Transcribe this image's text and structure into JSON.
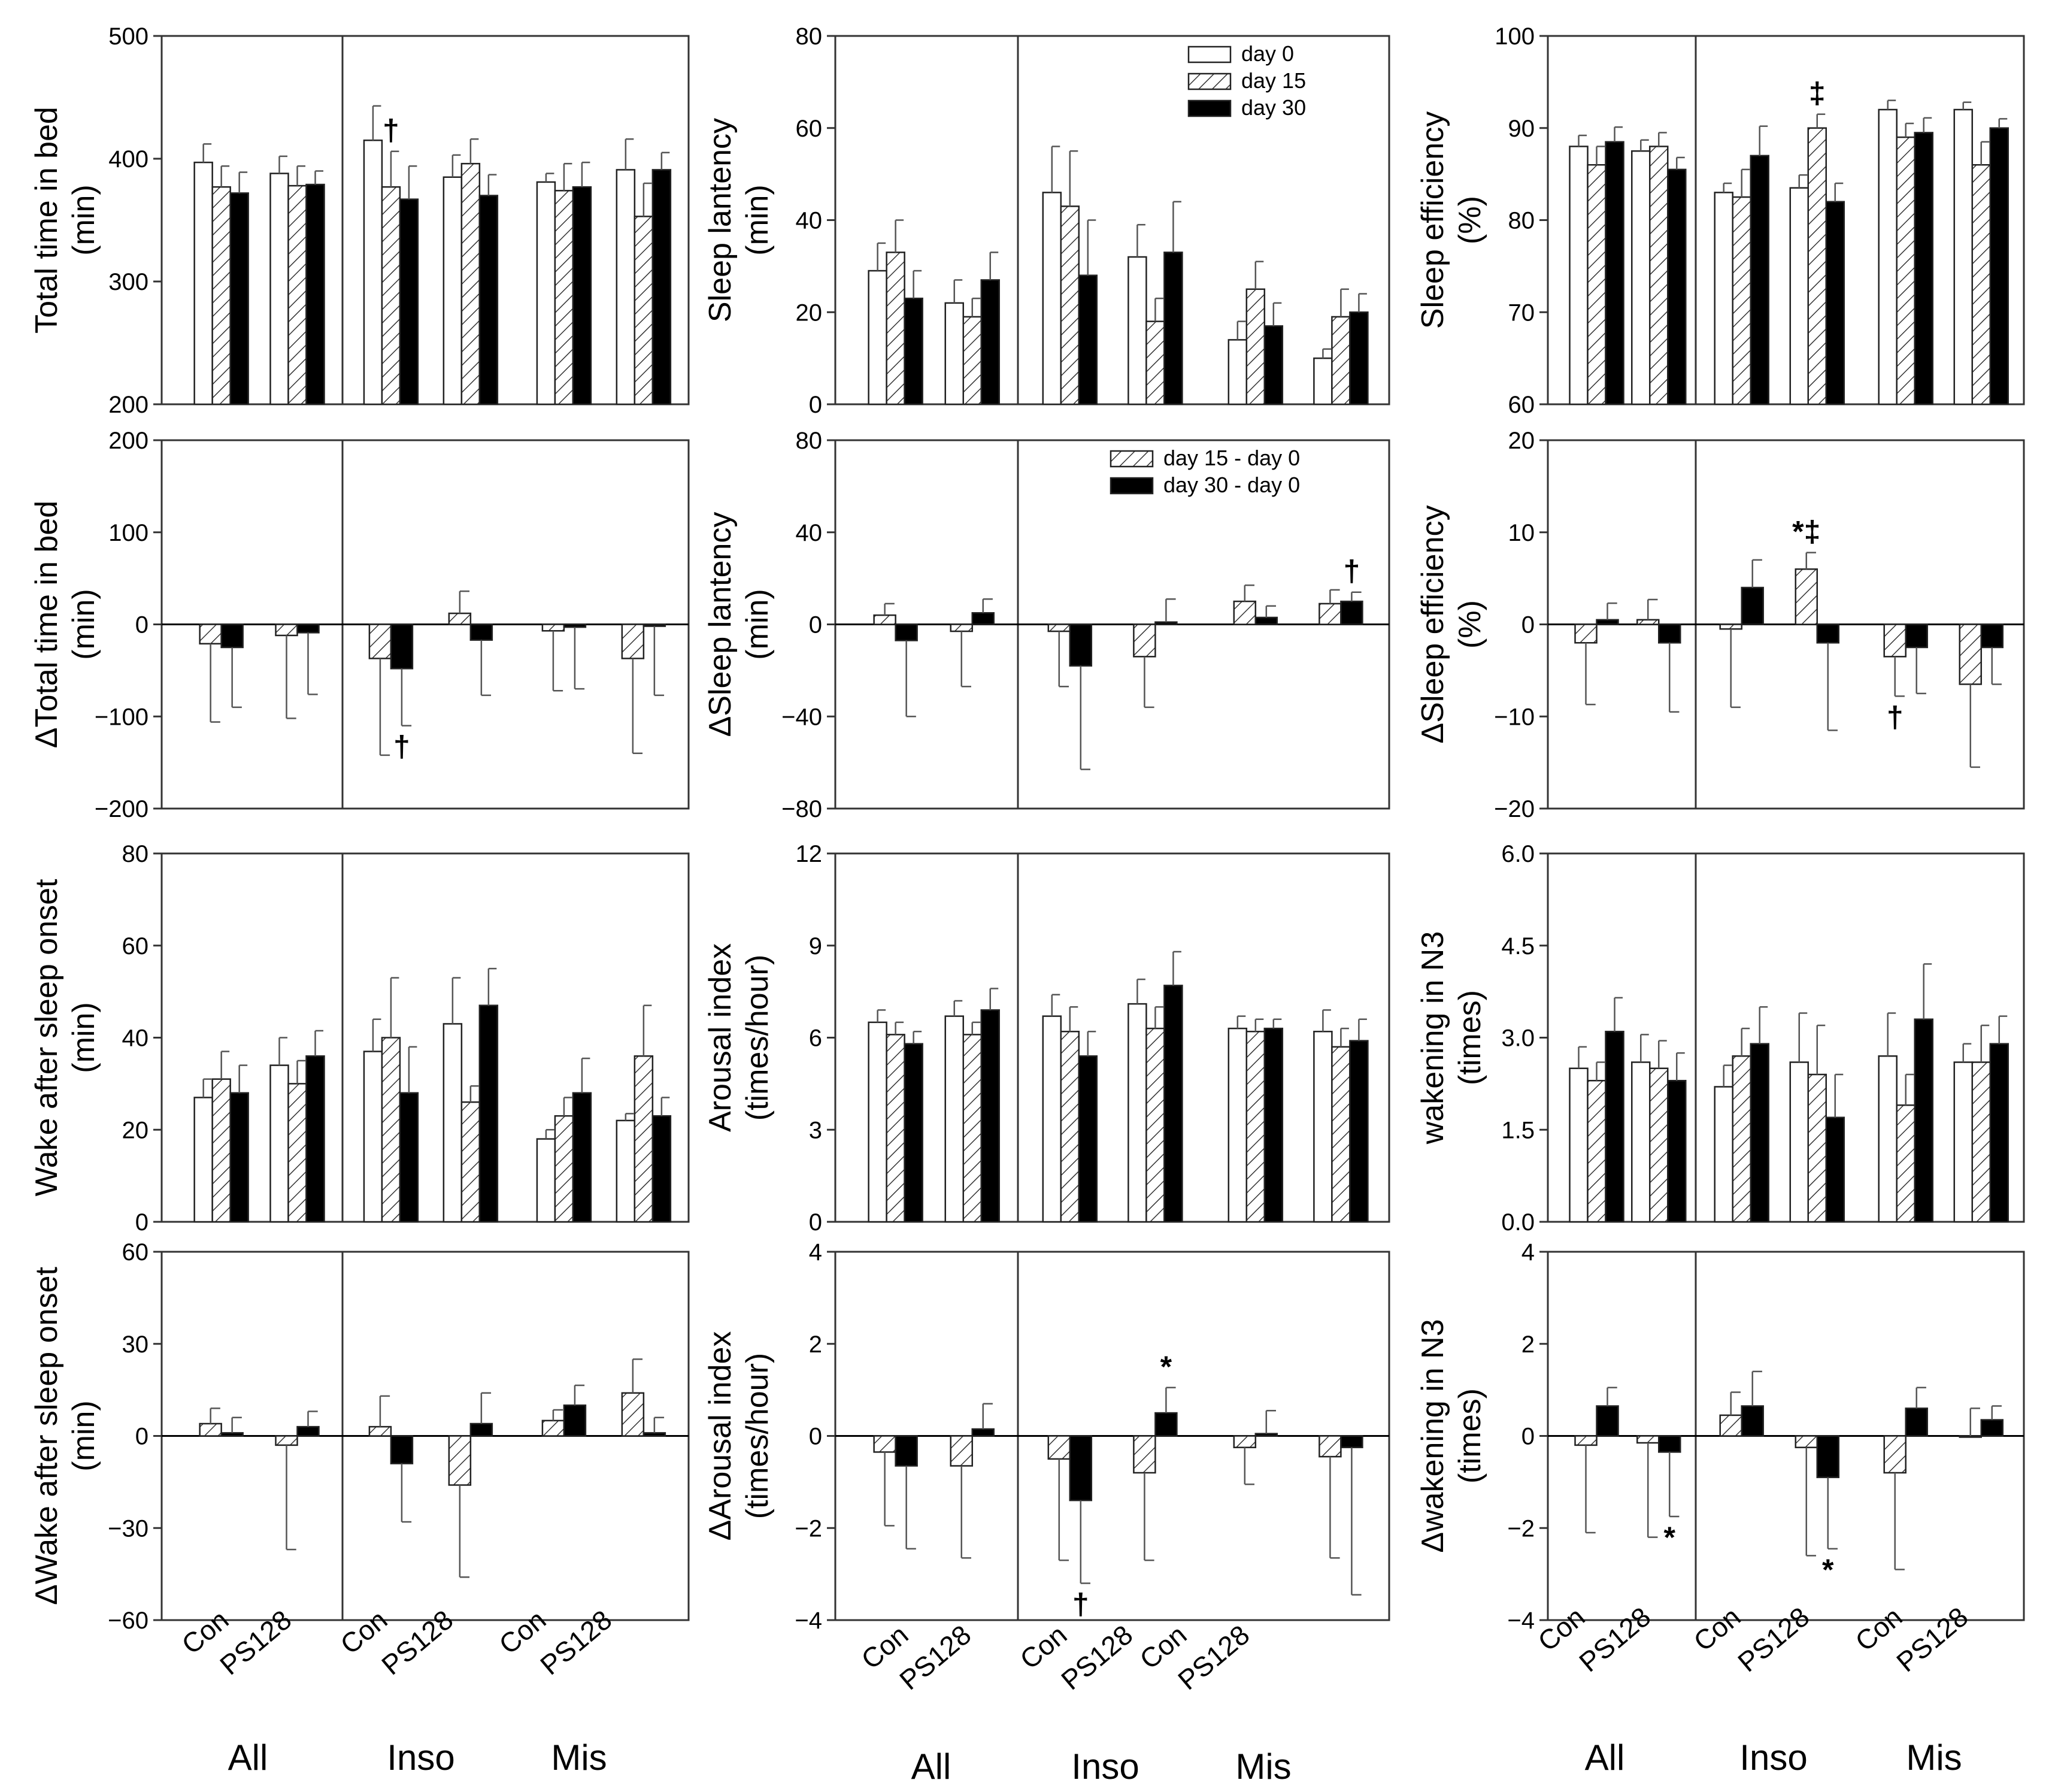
{
  "colors": {
    "day0": "#ffffff",
    "day15": "#ffffff",
    "day30": "#000000",
    "ink": "#000000",
    "error_bar": "#555555"
  },
  "legends": {
    "absolute": [
      "day 0",
      "day 15",
      "day 30"
    ],
    "delta": [
      "day 15 - day 0",
      "day 30 - day 0"
    ]
  },
  "x_axis": {
    "subgroup_labels": [
      "Con",
      "PS128"
    ],
    "group_labels": [
      "All",
      "Inso",
      "Mis"
    ]
  },
  "chart_data": [
    {
      "type": "bar",
      "id": "tib",
      "title": "",
      "ylabel": [
        "Total time in bed",
        "(min)"
      ],
      "ylim": [
        200,
        500
      ],
      "ticks": [
        200,
        300,
        400,
        500
      ],
      "tick_labels": [
        "200",
        "300",
        "400",
        "500"
      ],
      "baseline": 200,
      "legend": "none",
      "series": [
        {
          "name": "day 0",
          "values": [
            397,
            388,
            415,
            385,
            381,
            391
          ],
          "errors": [
            15,
            14,
            28,
            18,
            7,
            25
          ]
        },
        {
          "name": "day 15",
          "values": [
            377,
            378,
            377,
            396,
            374,
            353
          ],
          "errors": [
            17,
            16,
            29,
            20,
            22,
            27
          ]
        },
        {
          "name": "day 30",
          "values": [
            372,
            379,
            367,
            370,
            377,
            391
          ],
          "errors": [
            17,
            11,
            27,
            17,
            20,
            14
          ]
        }
      ],
      "annotations": [
        {
          "text": "†",
          "group": 2,
          "series": 1,
          "pos": "above"
        }
      ]
    },
    {
      "type": "bar",
      "id": "sl",
      "title": "",
      "ylabel": [
        "Sleep lantency",
        "(min)"
      ],
      "ylim": [
        0,
        80
      ],
      "ticks": [
        0,
        20,
        40,
        60,
        80
      ],
      "tick_labels": [
        "0",
        "20",
        "40",
        "60",
        "80"
      ],
      "baseline": 0,
      "legend": "top-right",
      "series": [
        {
          "name": "day 0",
          "values": [
            29,
            22,
            46,
            32,
            14,
            10
          ],
          "errors": [
            6,
            5,
            10,
            7,
            4,
            2
          ]
        },
        {
          "name": "day 15",
          "values": [
            33,
            19,
            43,
            18,
            25,
            19
          ],
          "errors": [
            7,
            4,
            12,
            5,
            6,
            6
          ]
        },
        {
          "name": "day 30",
          "values": [
            23,
            27,
            28,
            33,
            17,
            20
          ],
          "errors": [
            6,
            6,
            12,
            11,
            5,
            4
          ]
        }
      ],
      "annotations": []
    },
    {
      "type": "bar",
      "id": "se",
      "title": "",
      "ylabel": [
        "Sleep efficiency",
        "(%)"
      ],
      "ylim": [
        60,
        100
      ],
      "ticks": [
        60,
        70,
        80,
        90,
        100
      ],
      "tick_labels": [
        "60",
        "70",
        "80",
        "90",
        "100"
      ],
      "baseline": 60,
      "legend": "none",
      "series": [
        {
          "name": "day 0",
          "values": [
            88,
            87.5,
            83,
            83.5,
            92,
            92
          ],
          "errors": [
            1.2,
            1.2,
            1,
            1.4,
            1,
            0.8
          ]
        },
        {
          "name": "day 15",
          "values": [
            86,
            88,
            82.5,
            90,
            89,
            86
          ],
          "errors": [
            2,
            1.5,
            3,
            1.5,
            1.5,
            2.5
          ]
        },
        {
          "name": "day 30",
          "values": [
            88.5,
            85.5,
            87,
            82,
            89.5,
            90
          ],
          "errors": [
            1.6,
            1.3,
            3.2,
            2,
            1.6,
            1
          ]
        }
      ],
      "annotations": [
        {
          "text": "‡",
          "group": 3,
          "series": 1,
          "pos": "above"
        }
      ]
    },
    {
      "type": "bar",
      "id": "dtib",
      "title": "",
      "ylabel": [
        "ΔTotal time in bed",
        "(min)"
      ],
      "ylim": [
        -200,
        200
      ],
      "ticks": [
        -200,
        -100,
        0,
        100,
        200
      ],
      "tick_labels": [
        "−200",
        "−100",
        "0",
        "100",
        "200"
      ],
      "baseline": 0,
      "legend": "none",
      "series": [
        {
          "name": "day 15 - day 0",
          "values": [
            -21,
            -12,
            -37,
            12,
            -7,
            -37
          ],
          "errors": [
            85,
            90,
            105,
            24,
            65,
            103
          ]
        },
        {
          "name": "day 30 - day 0",
          "values": [
            -25,
            -9,
            -48,
            -17,
            -3,
            -2
          ],
          "errors": [
            65,
            67,
            62,
            60,
            67,
            75
          ]
        }
      ],
      "annotations": [
        {
          "text": "†",
          "group": 2,
          "series": 1,
          "pos": "below"
        }
      ]
    },
    {
      "type": "bar",
      "id": "dsl",
      "title": "",
      "ylabel": [
        "ΔSleep lantency",
        "(min)"
      ],
      "ylim": [
        -80,
        80
      ],
      "ticks": [
        -80,
        -40,
        0,
        40,
        80
      ],
      "tick_labels": [
        "−80",
        "−40",
        "0",
        "40",
        "80"
      ],
      "baseline": 0,
      "legend": "top-right",
      "series": [
        {
          "name": "day 15 - day 0",
          "values": [
            4,
            -3,
            -3,
            -14,
            10,
            9
          ],
          "errors": [
            5,
            24,
            24,
            22,
            7,
            6
          ]
        },
        {
          "name": "day 30 - day 0",
          "values": [
            -7,
            5,
            -18,
            1,
            3,
            10
          ],
          "errors": [
            33,
            6,
            45,
            10,
            5,
            4
          ]
        }
      ],
      "annotations": [
        {
          "text": "†",
          "group": 5,
          "series": 1,
          "pos": "above"
        }
      ]
    },
    {
      "type": "bar",
      "id": "dse",
      "title": "",
      "ylabel": [
        "ΔSleep efficiency",
        "(%)"
      ],
      "ylim": [
        -20,
        20
      ],
      "ticks": [
        -20,
        -10,
        0,
        10,
        20
      ],
      "tick_labels": [
        "−20",
        "−10",
        "0",
        "10",
        "20"
      ],
      "baseline": 0,
      "legend": "none",
      "series": [
        {
          "name": "day 15 - day 0",
          "values": [
            -2,
            0.5,
            -0.5,
            6,
            -3.5,
            -6.5
          ],
          "errors": [
            6.7,
            2.2,
            8.5,
            1.8,
            4.3,
            9
          ]
        },
        {
          "name": "day 30 - day 0",
          "values": [
            0.5,
            -2,
            4,
            -2,
            -2.5,
            -2.5
          ],
          "errors": [
            1.8,
            7.5,
            3,
            9.5,
            5,
            4
          ]
        }
      ],
      "annotations": [
        {
          "text": "*‡",
          "group": 3,
          "series": 0,
          "pos": "above"
        },
        {
          "text": "†",
          "group": 4,
          "series": 0,
          "pos": "below"
        }
      ]
    },
    {
      "type": "bar",
      "id": "waso",
      "title": "",
      "ylabel": [
        "Wake after sleep onset",
        "(min)"
      ],
      "ylim": [
        0,
        80
      ],
      "ticks": [
        0,
        20,
        40,
        60,
        80
      ],
      "tick_labels": [
        "0",
        "20",
        "40",
        "60",
        "80"
      ],
      "baseline": 0,
      "legend": "none",
      "series": [
        {
          "name": "day 0",
          "values": [
            27,
            34,
            37,
            43,
            18,
            22
          ],
          "errors": [
            4,
            6,
            7,
            10,
            2,
            1.5
          ]
        },
        {
          "name": "day 15",
          "values": [
            31,
            30,
            40,
            26,
            23,
            36
          ],
          "errors": [
            6,
            5,
            13,
            3.5,
            4,
            11
          ]
        },
        {
          "name": "day 30",
          "values": [
            28,
            36,
            28,
            47,
            28,
            23
          ],
          "errors": [
            6,
            5.5,
            10,
            8,
            7.5,
            4
          ]
        }
      ],
      "annotations": []
    },
    {
      "type": "bar",
      "id": "ai",
      "title": "",
      "ylabel": [
        "Arousal index",
        "(times/hour)"
      ],
      "ylim": [
        0,
        12
      ],
      "ticks": [
        0,
        3,
        6,
        9,
        12
      ],
      "tick_labels": [
        "0",
        "3",
        "6",
        "9",
        "12"
      ],
      "baseline": 0,
      "legend": "none",
      "series": [
        {
          "name": "day 0",
          "values": [
            6.5,
            6.7,
            6.7,
            7.1,
            6.3,
            6.2
          ],
          "errors": [
            0.4,
            0.5,
            0.7,
            0.8,
            0.4,
            0.7
          ]
        },
        {
          "name": "day 15",
          "values": [
            6.1,
            6.1,
            6.2,
            6.3,
            6.2,
            5.7
          ],
          "errors": [
            0.4,
            0.4,
            0.8,
            0.7,
            0.4,
            0.6
          ]
        },
        {
          "name": "day 30",
          "values": [
            5.8,
            6.9,
            5.4,
            7.7,
            6.3,
            5.9
          ],
          "errors": [
            0.4,
            0.7,
            0.8,
            1.1,
            0.3,
            0.7
          ]
        }
      ],
      "annotations": []
    },
    {
      "type": "bar",
      "id": "wn3",
      "title": "",
      "ylabel": [
        "wakening in N3",
        "(times)"
      ],
      "ylim": [
        0,
        6
      ],
      "ticks": [
        0,
        1.5,
        3,
        4.5,
        6
      ],
      "tick_labels": [
        "0.0",
        "1.5",
        "3.0",
        "4.5",
        "6.0"
      ],
      "baseline": 0,
      "legend": "none",
      "series": [
        {
          "name": "day 0",
          "values": [
            2.5,
            2.6,
            2.2,
            2.6,
            2.7,
            2.6
          ],
          "errors": [
            0.35,
            0.45,
            0.35,
            0.8,
            0.7,
            0.3
          ]
        },
        {
          "name": "day 15",
          "values": [
            2.3,
            2.5,
            2.7,
            2.4,
            1.9,
            2.6
          ],
          "errors": [
            0.3,
            0.45,
            0.45,
            0.8,
            0.5,
            0.6
          ]
        },
        {
          "name": "day 30",
          "values": [
            3.1,
            2.3,
            2.9,
            1.7,
            3.3,
            2.9
          ],
          "errors": [
            0.55,
            0.45,
            0.6,
            0.7,
            0.9,
            0.45
          ]
        }
      ],
      "annotations": []
    },
    {
      "type": "bar",
      "id": "dwaso",
      "title": "",
      "ylabel": [
        "ΔWake after sleep onset",
        "(min)"
      ],
      "ylim": [
        -60,
        60
      ],
      "ticks": [
        -60,
        -30,
        0,
        30,
        60
      ],
      "tick_labels": [
        "−60",
        "−30",
        "0",
        "30",
        "60"
      ],
      "baseline": 0,
      "legend": "none",
      "series": [
        {
          "name": "day 15 - day 0",
          "values": [
            4,
            -3,
            3,
            -16,
            5,
            14
          ],
          "errors": [
            5,
            34,
            10,
            30,
            3.5,
            11
          ]
        },
        {
          "name": "day 30 - day 0",
          "values": [
            1,
            3,
            -9,
            4,
            10,
            1
          ],
          "errors": [
            5,
            5,
            19,
            10,
            6.5,
            5
          ]
        }
      ],
      "annotations": []
    },
    {
      "type": "bar",
      "id": "dai",
      "title": "",
      "ylabel": [
        "ΔArousal index",
        "(times/hour)"
      ],
      "ylim": [
        -4,
        4
      ],
      "ticks": [
        -4,
        -2,
        0,
        2,
        4
      ],
      "tick_labels": [
        "−4",
        "−2",
        "0",
        "2",
        "4"
      ],
      "baseline": 0,
      "legend": "none",
      "series": [
        {
          "name": "day 15 - day 0",
          "values": [
            -0.35,
            -0.65,
            -0.5,
            -0.8,
            -0.25,
            -0.45
          ],
          "errors": [
            1.6,
            2.0,
            2.2,
            1.9,
            0.8,
            2.2
          ]
        },
        {
          "name": "day 30 - day 0",
          "values": [
            -0.65,
            0.15,
            -1.4,
            0.5,
            0.05,
            -0.25
          ],
          "errors": [
            1.8,
            0.55,
            1.8,
            0.55,
            0.5,
            3.2
          ]
        }
      ],
      "annotations": [
        {
          "text": "†",
          "group": 2,
          "series": 1,
          "pos": "below"
        },
        {
          "text": "*",
          "group": 3,
          "series": 1,
          "pos": "above"
        }
      ]
    },
    {
      "type": "bar",
      "id": "dwn3",
      "title": "",
      "ylabel": [
        "Δwakening in N3",
        "(times)"
      ],
      "ylim": [
        -4,
        4
      ],
      "ticks": [
        -4,
        -2,
        0,
        2,
        4
      ],
      "tick_labels": [
        "−4",
        "−2",
        "0",
        "2",
        "4"
      ],
      "baseline": 0,
      "legend": "none",
      "series": [
        {
          "name": "day 15 - day 0",
          "values": [
            -0.2,
            -0.15,
            0.45,
            -0.25,
            -0.8,
            0
          ],
          "errors": [
            1.9,
            2.05,
            0.5,
            2.35,
            2.1,
            0.6
          ]
        },
        {
          "name": "day 30 - day 0",
          "values": [
            0.65,
            -0.35,
            0.65,
            -0.9,
            0.6,
            0.35
          ],
          "errors": [
            0.4,
            1.4,
            0.75,
            1.55,
            0.45,
            0.3
          ]
        }
      ],
      "annotations": [
        {
          "text": "*",
          "group": 1,
          "series": 1,
          "pos": "below"
        },
        {
          "text": "*",
          "group": 3,
          "series": 1,
          "pos": "below"
        }
      ]
    }
  ]
}
